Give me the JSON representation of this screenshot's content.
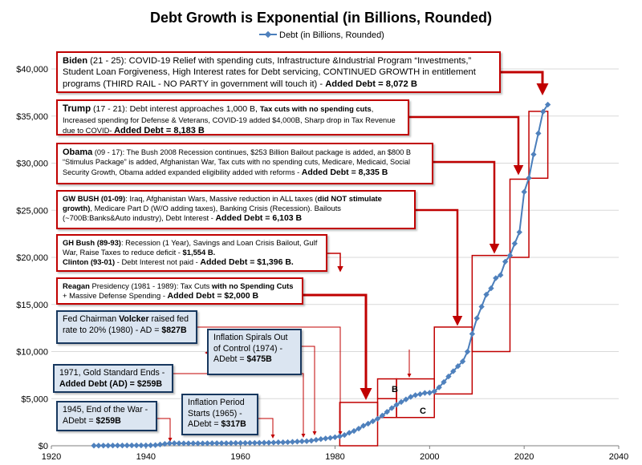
{
  "chart_data": {
    "type": "line",
    "title": "Debt Growth is Exponential (in Billions, Rounded)",
    "series": [
      {
        "name": "Debt (in Billions, Rounded)",
        "x": [
          1929,
          1930,
          1931,
          1932,
          1933,
          1934,
          1935,
          1936,
          1937,
          1938,
          1939,
          1940,
          1941,
          1942,
          1943,
          1944,
          1945,
          1946,
          1947,
          1948,
          1949,
          1950,
          1951,
          1952,
          1953,
          1954,
          1955,
          1956,
          1957,
          1958,
          1959,
          1960,
          1961,
          1962,
          1963,
          1964,
          1965,
          1966,
          1967,
          1968,
          1969,
          1970,
          1971,
          1972,
          1973,
          1974,
          1975,
          1976,
          1977,
          1978,
          1979,
          1980,
          1981,
          1982,
          1983,
          1984,
          1985,
          1986,
          1987,
          1988,
          1989,
          1990,
          1991,
          1992,
          1993,
          1994,
          1995,
          1996,
          1997,
          1998,
          1999,
          2000,
          2001,
          2002,
          2003,
          2004,
          2005,
          2006,
          2007,
          2008,
          2009,
          2010,
          2011,
          2012,
          2013,
          2014,
          2015,
          2016,
          2017,
          2018,
          2019,
          2020,
          2021,
          2022,
          2023,
          2024,
          2025
        ],
        "values": [
          17,
          16,
          17,
          19,
          23,
          27,
          29,
          34,
          37,
          37,
          40,
          43,
          49,
          72,
          137,
          201,
          259,
          269,
          258,
          252,
          253,
          257,
          255,
          259,
          266,
          271,
          274,
          273,
          272,
          280,
          287,
          291,
          293,
          303,
          310,
          316,
          322,
          328,
          340,
          368,
          366,
          381,
          408,
          436,
          466,
          484,
          542,
          629,
          706,
          777,
          830,
          909,
          995,
          1137,
          1372,
          1565,
          1817,
          2121,
          2346,
          2601,
          2868,
          3206,
          3598,
          4001,
          4351,
          4643,
          4921,
          5181,
          5369,
          5478,
          5605,
          5628,
          5769,
          6198,
          6760,
          7354,
          7905,
          8451,
          8951,
          9986,
          11876,
          13529,
          14764,
          16051,
          16719,
          17794,
          18120,
          19539,
          20206,
          21462,
          22669,
          26945,
          28428,
          30928,
          33167,
          35464,
          36215
        ]
      }
    ],
    "legend": "Debt (in Billions, Rounded)",
    "legend_position": "top",
    "xlim": [
      1920,
      2040
    ],
    "ylim": [
      0,
      40000
    ],
    "x_ticks": [
      1920,
      1940,
      1960,
      1980,
      2000,
      2020,
      2040
    ],
    "x_tick_labels": [
      "1920",
      "1940",
      "1960",
      "1980",
      "2000",
      "2020",
      "2040"
    ],
    "y_ticks": [
      0,
      5000,
      10000,
      15000,
      20000,
      25000,
      30000,
      35000,
      40000
    ],
    "y_tick_labels": [
      "$0",
      "$5,000",
      "$10,000",
      "$15,000",
      "$20,000",
      "$25,000",
      "$30,000",
      "$35,000",
      "$40,000"
    ],
    "grid": "horizontal",
    "annotations": {
      "biden": {
        "who": "Biden",
        "period": " (21 - 25): COVID-19 Relief with spending cuts, Infrastructure &Industrial Program “Investments,” Student Loan Forgiveness, High Interest rates for Debt servicing, CONTINUED GROWTH in entitlement programs (THIRD RAIL - NO PARTY in government will touch it) - ",
        "added": "Added Debt = 8,072 B"
      },
      "trump": {
        "who": "Trump",
        "text1": " (17 - 21): Debt interest approaches 1,000 B, ",
        "bold1": "Tax cuts with no spending cuts",
        "text2": ", Increased spending for Defense & Veterans, COVID-19 added $4,000B, Sharp drop in Tax Revenue due to COVID- ",
        "added": "Added Debt = 8,183 B"
      },
      "obama": {
        "who": "Obama",
        "text1": " (09 - 17): The Bush 2008 Recession continues, $253 Billion Bailout package is added, an $800 B “Stimulus Package” is added, Afghanistan War, Tax cuts with no spending cuts, Medicare, Medicaid, Social Security Growth, Obama added expanded eligibility added with reforms - ",
        "added": "Added Debt = 8,335 B"
      },
      "gwbush": {
        "who": "GW BUSH (01-09)",
        "text1": ": Iraq, Afghanistan Wars, Massive reduction in ALL taxes (",
        "bold1": "did NOT stimulate growth)",
        "text2": ", Medicare Part D (W/O adding taxes), Banking Crisis (Recession). Bailouts (~700B:Banks&Auto industry), Debt Interest - ",
        "added": "Added Debt = 6,103 B"
      },
      "ghbush": {
        "who": "GH Bush (89-93)",
        "text1": ": Recession (1 Year), Savings and Loan Crisis Bailout, Gulf War, Raise Taxes to reduce deficit - ",
        "bold1": "$1,554 B.",
        "who2": "Clinton (93-01)",
        "text2": " - Debt Interest not paid - ",
        "added": "Added Debt = $1,396 B."
      },
      "reagan": {
        "who": "Reagan",
        "text1": " Presidency (1981 - 1989): Tax Cuts ",
        "bold1": "with no Spending Cuts",
        "text2": " + Massive Defense Spending - ",
        "added": "Added Debt = $2,000 B"
      },
      "volcker": {
        "text1": "Fed Chairman ",
        "bold1": "Volcker",
        "text2": " raised fed rate to 20% (1980) - AD = ",
        "added": "$827B"
      },
      "inflation1974": {
        "text1": "Inflation Spirals Out of Control (1974) - ADebt = ",
        "added": "$475B"
      },
      "gold1971": {
        "text1": "1971, Gold Standard Ends - ",
        "added": "Added Debt (AD) = $259B"
      },
      "war1945": {
        "text1": "1945, End of the War - ADebt = ",
        "added": "$259B"
      },
      "inflation1965": {
        "text1": "Inflation Period Starts (1965) - ADebt = ",
        "added": "$317B"
      },
      "box_b": "B",
      "box_c": "C"
    }
  },
  "colors": {
    "series": "#4a7ebb",
    "marker": "#4f81bd",
    "annotation_red": "#c00000",
    "annotation_blue_fill": "#dbe5f1",
    "annotation_blue_border": "#17375e",
    "grid": "#d9d9d9"
  }
}
